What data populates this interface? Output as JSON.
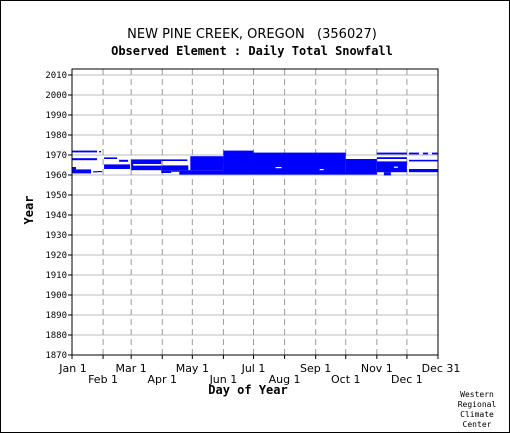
{
  "chart_data": {
    "type": "bar",
    "title": "NEW PINE CREEK, OREGON   (356027)",
    "subtitle": "Observed Element : Daily Total Snowfall",
    "xlabel": "Day of Year",
    "ylabel": "Year",
    "xlim": [
      1,
      366
    ],
    "ylim": [
      1870,
      2012
    ],
    "y_ticks": [
      2010,
      2000,
      1990,
      1980,
      1970,
      1960,
      1950,
      1940,
      1930,
      1920,
      1910,
      1900,
      1890,
      1880,
      1870
    ],
    "x_ticks_upper": [
      {
        "day": 1,
        "label": "Jan 1"
      },
      {
        "day": 60,
        "label": "Mar 1"
      },
      {
        "day": 121,
        "label": "May 1"
      },
      {
        "day": 182,
        "label": "Jul 1"
      },
      {
        "day": 244,
        "label": "Sep 1"
      },
      {
        "day": 305,
        "label": "Nov 1"
      },
      {
        "day": 366,
        "label": "Dec 31"
      }
    ],
    "x_ticks_lower": [
      {
        "day": 32,
        "label": "Feb 1"
      },
      {
        "day": 91,
        "label": "Apr 1"
      },
      {
        "day": 152,
        "label": "Jun 1"
      },
      {
        "day": 213,
        "label": "Aug 1"
      },
      {
        "day": 274,
        "label": "Oct 1"
      },
      {
        "day": 335,
        "label": "Dec 1"
      }
    ],
    "grid_days": [
      32,
      60,
      91,
      121,
      152,
      182,
      213,
      244,
      274,
      305,
      335
    ],
    "grid": true,
    "series_color": "#0000ff",
    "coverage": [
      {
        "x0": 1,
        "x1": 26,
        "y0": 1971.3,
        "y1": 1972.2
      },
      {
        "x0": 1,
        "x1": 26,
        "y0": 1967.4,
        "y1": 1968.4
      },
      {
        "x0": 1,
        "x1": 20,
        "y0": 1960.8,
        "y1": 1962.8
      },
      {
        "x0": 22,
        "x1": 26,
        "y0": 1961.3,
        "y1": 1961.9
      },
      {
        "x0": 1,
        "x1": 5,
        "y0": 1962.8,
        "y1": 1964.0
      },
      {
        "x0": 26,
        "x1": 31,
        "y0": 1961.4,
        "y1": 1962.0
      },
      {
        "x0": 28,
        "x1": 30,
        "y0": 1971.3,
        "y1": 1972.0
      },
      {
        "x0": 33,
        "x1": 46,
        "y0": 1968.0,
        "y1": 1968.8
      },
      {
        "x0": 33,
        "x1": 59,
        "y0": 1963.0,
        "y1": 1965.3
      },
      {
        "x0": 48,
        "x1": 57,
        "y0": 1966.6,
        "y1": 1967.6
      },
      {
        "x0": 60,
        "x1": 90,
        "y0": 1962.4,
        "y1": 1967.8
      },
      {
        "x0": 90,
        "x1": 117,
        "y0": 1962.4,
        "y1": 1964.8
      },
      {
        "x0": 90,
        "x1": 116,
        "y0": 1967.0,
        "y1": 1967.8
      },
      {
        "x0": 90,
        "x1": 100,
        "y0": 1961.0,
        "y1": 1962.4
      },
      {
        "x0": 100,
        "x1": 108,
        "y0": 1961.6,
        "y1": 1962.4
      },
      {
        "x0": 108,
        "x1": 152,
        "y0": 1960.2,
        "y1": 1962.4
      },
      {
        "x0": 119,
        "x1": 152,
        "y0": 1962.4,
        "y1": 1969.4
      },
      {
        "x0": 152,
        "x1": 182,
        "y0": 1960.2,
        "y1": 1972.2
      },
      {
        "x0": 182,
        "x1": 274,
        "y0": 1960.2,
        "y1": 1971.2
      },
      {
        "x0": 274,
        "x1": 305,
        "y0": 1960.2,
        "y1": 1968.0
      },
      {
        "x0": 305,
        "x1": 335,
        "y0": 1970.3,
        "y1": 1971.2
      },
      {
        "x0": 305,
        "x1": 335,
        "y0": 1968.0,
        "y1": 1968.9
      },
      {
        "x0": 305,
        "x1": 335,
        "y0": 1961.4,
        "y1": 1966.8
      },
      {
        "x0": 312,
        "x1": 319,
        "y0": 1959.8,
        "y1": 1961.4
      },
      {
        "x0": 337,
        "x1": 366,
        "y0": 1961.4,
        "y1": 1963.0
      },
      {
        "x0": 337,
        "x1": 366,
        "y0": 1970.3,
        "y1": 1971.2
      },
      {
        "x0": 337,
        "x1": 366,
        "y0": 1966.8,
        "y1": 1967.6
      }
    ],
    "gaps": [
      {
        "x0": 62,
        "x1": 90,
        "y0": 1964.7,
        "y1": 1965.5
      },
      {
        "x0": 204,
        "x1": 210,
        "y0": 1963.4,
        "y1": 1964.0
      },
      {
        "x0": 248,
        "x1": 252,
        "y0": 1962.4,
        "y1": 1963.0
      },
      {
        "x0": 322,
        "x1": 326,
        "y0": 1963.6,
        "y1": 1964.2
      },
      {
        "x0": 347,
        "x1": 351,
        "y0": 1970.3,
        "y1": 1971.2
      },
      {
        "x0": 356,
        "x1": 360,
        "y0": 1970.3,
        "y1": 1971.2
      }
    ]
  },
  "credit": [
    "Western",
    "Regional",
    "Climate",
    "Center"
  ]
}
